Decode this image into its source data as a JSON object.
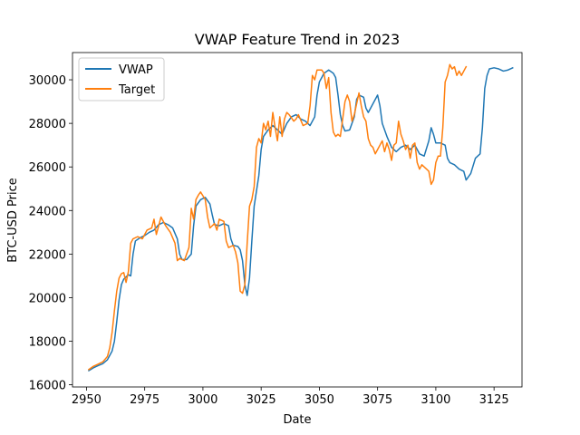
{
  "chart_data": {
    "type": "line",
    "title": "VWAP Feature Trend in 2023",
    "xlabel": "Date",
    "ylabel": "BTC-USD Price",
    "xlim": [
      2944,
      3137
    ],
    "ylim": [
      15900,
      31250
    ],
    "xticks": [
      2950,
      2975,
      3000,
      3025,
      3050,
      3075,
      3100,
      3125
    ],
    "yticks": [
      16000,
      18000,
      20000,
      22000,
      24000,
      26000,
      28000,
      30000
    ],
    "legend_position": "upper-left",
    "grid": false,
    "series": [
      {
        "name": "VWAP",
        "color": "#1f77b4",
        "points": [
          [
            2951,
            16650
          ],
          [
            2953,
            16780
          ],
          [
            2955,
            16880
          ],
          [
            2957,
            16970
          ],
          [
            2959,
            17150
          ],
          [
            2961,
            17550
          ],
          [
            2962,
            18000
          ],
          [
            2963,
            18900
          ],
          [
            2964,
            19900
          ],
          [
            2965,
            20600
          ],
          [
            2966,
            20850
          ],
          [
            2967,
            20950
          ],
          [
            2968,
            21050
          ],
          [
            2969,
            21000
          ],
          [
            2970,
            22000
          ],
          [
            2971,
            22600
          ],
          [
            2973,
            22750
          ],
          [
            2975,
            22850
          ],
          [
            2977,
            23000
          ],
          [
            2979,
            23100
          ],
          [
            2981,
            23350
          ],
          [
            2983,
            23450
          ],
          [
            2985,
            23350
          ],
          [
            2987,
            23200
          ],
          [
            2989,
            22700
          ],
          [
            2990,
            22000
          ],
          [
            2991,
            21750
          ],
          [
            2993,
            21750
          ],
          [
            2995,
            22000
          ],
          [
            2996,
            23300
          ],
          [
            2997,
            24200
          ],
          [
            2999,
            24500
          ],
          [
            3001,
            24600
          ],
          [
            3003,
            24300
          ],
          [
            3004,
            23800
          ],
          [
            3005,
            23350
          ],
          [
            3007,
            23300
          ],
          [
            3009,
            23400
          ],
          [
            3011,
            23300
          ],
          [
            3012,
            22700
          ],
          [
            3013,
            22400
          ],
          [
            3015,
            22350
          ],
          [
            3016,
            22200
          ],
          [
            3017,
            21700
          ],
          [
            3018,
            20600
          ],
          [
            3019,
            20100
          ],
          [
            3020,
            20900
          ],
          [
            3021,
            22600
          ],
          [
            3022,
            24200
          ],
          [
            3023,
            24900
          ],
          [
            3024,
            25600
          ],
          [
            3025,
            26800
          ],
          [
            3026,
            27400
          ],
          [
            3028,
            27700
          ],
          [
            3030,
            27900
          ],
          [
            3032,
            27700
          ],
          [
            3034,
            27500
          ],
          [
            3036,
            28000
          ],
          [
            3038,
            28300
          ],
          [
            3040,
            28400
          ],
          [
            3042,
            28200
          ],
          [
            3044,
            28100
          ],
          [
            3046,
            27900
          ],
          [
            3048,
            28300
          ],
          [
            3049,
            29300
          ],
          [
            3050,
            29900
          ],
          [
            3052,
            30300
          ],
          [
            3054,
            30450
          ],
          [
            3056,
            30300
          ],
          [
            3057,
            30100
          ],
          [
            3058,
            29300
          ],
          [
            3059,
            28400
          ],
          [
            3060,
            27900
          ],
          [
            3061,
            27650
          ],
          [
            3063,
            27700
          ],
          [
            3065,
            28300
          ],
          [
            3066,
            29100
          ],
          [
            3067,
            29300
          ],
          [
            3069,
            29200
          ],
          [
            3070,
            28700
          ],
          [
            3071,
            28500
          ],
          [
            3073,
            28900
          ],
          [
            3075,
            29300
          ],
          [
            3076,
            28800
          ],
          [
            3077,
            28000
          ],
          [
            3079,
            27400
          ],
          [
            3081,
            26900
          ],
          [
            3083,
            26700
          ],
          [
            3085,
            26900
          ],
          [
            3087,
            27000
          ],
          [
            3089,
            26800
          ],
          [
            3091,
            27000
          ],
          [
            3093,
            26600
          ],
          [
            3095,
            26500
          ],
          [
            3097,
            27200
          ],
          [
            3098,
            27800
          ],
          [
            3099,
            27500
          ],
          [
            3100,
            27100
          ],
          [
            3102,
            27100
          ],
          [
            3104,
            27000
          ],
          [
            3105,
            26400
          ],
          [
            3106,
            26200
          ],
          [
            3108,
            26100
          ],
          [
            3110,
            25900
          ],
          [
            3112,
            25800
          ],
          [
            3113,
            25400
          ],
          [
            3115,
            25700
          ],
          [
            3117,
            26400
          ],
          [
            3119,
            26600
          ],
          [
            3120,
            27800
          ],
          [
            3121,
            29600
          ],
          [
            3122,
            30200
          ],
          [
            3123,
            30500
          ],
          [
            3125,
            30550
          ],
          [
            3127,
            30500
          ],
          [
            3129,
            30400
          ],
          [
            3131,
            30450
          ],
          [
            3133,
            30550
          ]
        ]
      },
      {
        "name": "Target",
        "color": "#ff7f0e",
        "points": [
          [
            2951,
            16700
          ],
          [
            2953,
            16850
          ],
          [
            2955,
            16950
          ],
          [
            2957,
            17050
          ],
          [
            2959,
            17300
          ],
          [
            2960,
            17700
          ],
          [
            2961,
            18400
          ],
          [
            2962,
            19400
          ],
          [
            2963,
            20300
          ],
          [
            2964,
            20900
          ],
          [
            2965,
            21100
          ],
          [
            2966,
            21150
          ],
          [
            2967,
            20700
          ],
          [
            2968,
            21200
          ],
          [
            2969,
            22500
          ],
          [
            2970,
            22700
          ],
          [
            2972,
            22800
          ],
          [
            2974,
            22700
          ],
          [
            2976,
            23100
          ],
          [
            2978,
            23200
          ],
          [
            2979,
            23600
          ],
          [
            2980,
            22900
          ],
          [
            2982,
            23700
          ],
          [
            2984,
            23300
          ],
          [
            2986,
            23000
          ],
          [
            2988,
            22500
          ],
          [
            2989,
            21700
          ],
          [
            2990,
            21800
          ],
          [
            2992,
            21700
          ],
          [
            2994,
            22300
          ],
          [
            2995,
            24100
          ],
          [
            2996,
            23600
          ],
          [
            2997,
            24500
          ],
          [
            2998,
            24700
          ],
          [
            2999,
            24850
          ],
          [
            3001,
            24500
          ],
          [
            3002,
            23700
          ],
          [
            3003,
            23200
          ],
          [
            3005,
            23400
          ],
          [
            3006,
            23100
          ],
          [
            3007,
            23600
          ],
          [
            3009,
            23500
          ],
          [
            3010,
            22600
          ],
          [
            3011,
            22300
          ],
          [
            3013,
            22400
          ],
          [
            3014,
            22100
          ],
          [
            3015,
            21600
          ],
          [
            3016,
            20300
          ],
          [
            3017,
            20200
          ],
          [
            3018,
            20600
          ],
          [
            3019,
            22500
          ],
          [
            3020,
            24200
          ],
          [
            3021,
            24500
          ],
          [
            3022,
            25100
          ],
          [
            3023,
            26900
          ],
          [
            3024,
            27300
          ],
          [
            3025,
            27100
          ],
          [
            3026,
            28000
          ],
          [
            3027,
            27700
          ],
          [
            3028,
            28100
          ],
          [
            3029,
            27400
          ],
          [
            3030,
            28500
          ],
          [
            3031,
            27800
          ],
          [
            3032,
            27200
          ],
          [
            3033,
            28300
          ],
          [
            3034,
            27400
          ],
          [
            3035,
            28200
          ],
          [
            3036,
            28500
          ],
          [
            3037,
            28400
          ],
          [
            3039,
            28100
          ],
          [
            3040,
            28200
          ],
          [
            3041,
            28400
          ],
          [
            3043,
            27900
          ],
          [
            3045,
            28000
          ],
          [
            3046,
            28800
          ],
          [
            3047,
            30200
          ],
          [
            3048,
            30000
          ],
          [
            3049,
            30450
          ],
          [
            3051,
            30450
          ],
          [
            3052,
            30300
          ],
          [
            3053,
            29600
          ],
          [
            3054,
            30100
          ],
          [
            3055,
            28500
          ],
          [
            3056,
            27600
          ],
          [
            3057,
            27400
          ],
          [
            3058,
            27500
          ],
          [
            3059,
            27400
          ],
          [
            3060,
            28200
          ],
          [
            3061,
            29000
          ],
          [
            3062,
            29300
          ],
          [
            3063,
            29000
          ],
          [
            3064,
            28100
          ],
          [
            3065,
            28400
          ],
          [
            3067,
            29400
          ],
          [
            3068,
            28800
          ],
          [
            3069,
            28300
          ],
          [
            3070,
            28100
          ],
          [
            3071,
            27300
          ],
          [
            3072,
            27000
          ],
          [
            3073,
            26900
          ],
          [
            3074,
            26600
          ],
          [
            3075,
            26800
          ],
          [
            3076,
            27000
          ],
          [
            3077,
            27200
          ],
          [
            3078,
            26700
          ],
          [
            3079,
            27100
          ],
          [
            3080,
            26800
          ],
          [
            3081,
            26300
          ],
          [
            3082,
            27000
          ],
          [
            3083,
            27100
          ],
          [
            3084,
            28100
          ],
          [
            3085,
            27500
          ],
          [
            3086,
            27200
          ],
          [
            3087,
            26800
          ],
          [
            3088,
            27000
          ],
          [
            3089,
            26400
          ],
          [
            3090,
            27000
          ],
          [
            3091,
            27100
          ],
          [
            3092,
            26200
          ],
          [
            3093,
            25900
          ],
          [
            3094,
            26100
          ],
          [
            3095,
            26000
          ],
          [
            3096,
            25900
          ],
          [
            3097,
            25800
          ],
          [
            3098,
            25200
          ],
          [
            3099,
            25400
          ],
          [
            3100,
            26200
          ],
          [
            3101,
            26500
          ],
          [
            3102,
            26500
          ],
          [
            3103,
            27800
          ],
          [
            3104,
            29900
          ],
          [
            3105,
            30200
          ],
          [
            3106,
            30700
          ],
          [
            3107,
            30500
          ],
          [
            3108,
            30600
          ],
          [
            3109,
            30200
          ],
          [
            3110,
            30400
          ],
          [
            3111,
            30200
          ],
          [
            3112,
            30400
          ],
          [
            3113,
            30600
          ]
        ]
      }
    ]
  }
}
